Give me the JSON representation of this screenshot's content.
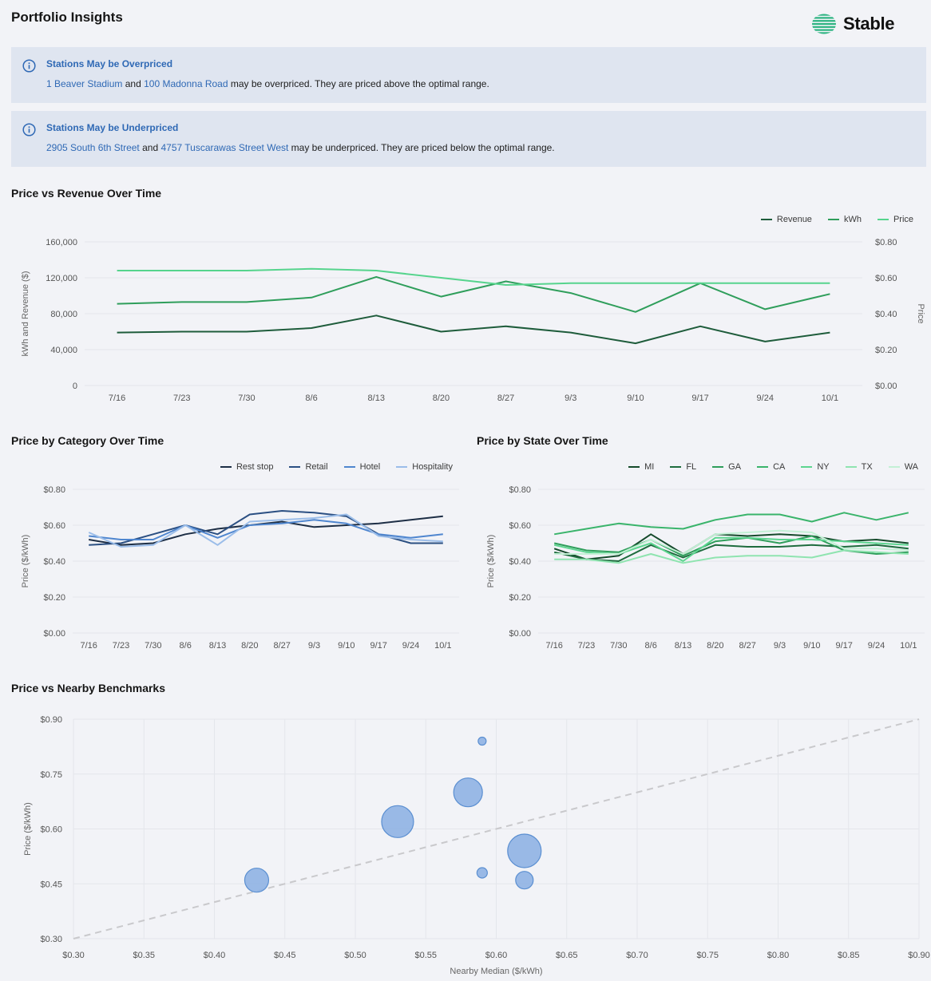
{
  "page": {
    "title": "Portfolio Insights",
    "logo_text": "Stable"
  },
  "alerts": [
    {
      "title": "Stations May be Overpriced",
      "link1": "1 Beaver Stadium",
      "joiner": " and ",
      "link2": "100 Madonna Road",
      "tail": " may be overpriced. They are priced above the optimal range."
    },
    {
      "title": "Stations May be Underpriced",
      "link1": "2905 South 6th Street",
      "joiner": " and ",
      "link2": "4757 Tuscarawas Street West",
      "tail": " may be underpriced. They are priced below the optimal range."
    }
  ],
  "colors": {
    "link": "#2f69b5",
    "alert_bg": "#dfe5f0",
    "gridline": "#e4e6eb",
    "bubble": "#8fb2e3",
    "bubble_stroke": "#5b8fd1"
  },
  "chart_data": [
    {
      "id": "price-vs-revenue",
      "type": "line",
      "title": "Price vs Revenue Over Time",
      "categories": [
        "7/16",
        "7/23",
        "7/30",
        "8/6",
        "8/13",
        "8/20",
        "8/27",
        "9/3",
        "9/10",
        "9/17",
        "9/24",
        "10/1"
      ],
      "ylabel": "kWh and Revenue ($)",
      "y2label": "Price",
      "ylim": [
        0,
        160000
      ],
      "y2lim": [
        0,
        0.8
      ],
      "yticks": [
        "0",
        "40,000",
        "80,000",
        "120,000",
        "160,000"
      ],
      "y2ticks": [
        "$0.00",
        "$0.20",
        "$0.40",
        "$0.60",
        "$0.80"
      ],
      "legend_position": "top-right",
      "series": [
        {
          "name": "Revenue",
          "axis": "left",
          "color": "#1e5c3b",
          "values": [
            59000,
            60000,
            60000,
            64000,
            78000,
            60000,
            66000,
            59000,
            47000,
            66000,
            49000,
            59000
          ]
        },
        {
          "name": "kWh",
          "axis": "left",
          "color": "#2f9e5b",
          "values": [
            91000,
            93000,
            93000,
            98000,
            121000,
            99000,
            116000,
            103000,
            82000,
            114000,
            85000,
            102000
          ]
        },
        {
          "name": "Price",
          "axis": "right",
          "color": "#56d48d",
          "values": [
            0.64,
            0.64,
            0.64,
            0.65,
            0.64,
            0.6,
            0.56,
            0.57,
            0.57,
            0.57,
            0.57,
            0.57
          ]
        }
      ]
    },
    {
      "id": "price-by-category",
      "type": "line",
      "title": "Price by Category Over Time",
      "categories": [
        "7/16",
        "7/23",
        "7/30",
        "8/6",
        "8/13",
        "8/20",
        "8/27",
        "9/3",
        "9/10",
        "9/17",
        "9/24",
        "10/1"
      ],
      "ylabel": "Price ($/kWh)",
      "ylim": [
        0,
        0.8
      ],
      "yticks": [
        "$0.00",
        "$0.20",
        "$0.40",
        "$0.60",
        "$0.80"
      ],
      "legend_position": "top-right",
      "series": [
        {
          "name": "Rest stop",
          "color": "#1d2e45",
          "values": [
            0.52,
            0.49,
            0.5,
            0.55,
            0.58,
            0.6,
            0.62,
            0.59,
            0.6,
            0.61,
            0.63,
            0.65
          ]
        },
        {
          "name": "Retail",
          "color": "#2b4f82",
          "values": [
            0.49,
            0.5,
            0.55,
            0.6,
            0.55,
            0.66,
            0.68,
            0.67,
            0.65,
            0.55,
            0.5,
            0.5
          ]
        },
        {
          "name": "Hotel",
          "color": "#4f86cf",
          "values": [
            0.54,
            0.52,
            0.52,
            0.6,
            0.53,
            0.6,
            0.61,
            0.63,
            0.61,
            0.55,
            0.53,
            0.55
          ]
        },
        {
          "name": "Hospitality",
          "color": "#9bbde9",
          "values": [
            0.56,
            0.48,
            0.49,
            0.6,
            0.49,
            0.62,
            0.63,
            0.64,
            0.66,
            0.54,
            0.52,
            0.51
          ]
        }
      ]
    },
    {
      "id": "price-by-state",
      "type": "line",
      "title": "Price by State Over Time",
      "categories": [
        "7/16",
        "7/23",
        "7/30",
        "8/6",
        "8/13",
        "8/20",
        "8/27",
        "9/3",
        "9/10",
        "9/17",
        "9/24",
        "10/1"
      ],
      "ylabel": "Price ($/kWh)",
      "ylim": [
        0,
        0.8
      ],
      "yticks": [
        "$0.00",
        "$0.20",
        "$0.40",
        "$0.60",
        "$0.80"
      ],
      "legend_position": "top-right",
      "series": [
        {
          "name": "MI",
          "color": "#154a2b",
          "values": [
            0.47,
            0.41,
            0.43,
            0.55,
            0.44,
            0.55,
            0.54,
            0.55,
            0.54,
            0.51,
            0.52,
            0.5
          ]
        },
        {
          "name": "FL",
          "color": "#1e6c3e",
          "values": [
            0.45,
            0.41,
            0.4,
            0.49,
            0.42,
            0.49,
            0.48,
            0.48,
            0.49,
            0.48,
            0.49,
            0.47
          ]
        },
        {
          "name": "GA",
          "color": "#2f9e5b",
          "values": [
            0.5,
            0.46,
            0.45,
            0.52,
            0.43,
            0.51,
            0.53,
            0.5,
            0.54,
            0.46,
            0.44,
            0.45
          ]
        },
        {
          "name": "CA",
          "color": "#3ab46b",
          "values": [
            0.55,
            0.58,
            0.61,
            0.59,
            0.58,
            0.63,
            0.66,
            0.66,
            0.62,
            0.67,
            0.63,
            0.67
          ]
        },
        {
          "name": "NY",
          "color": "#5cd58f",
          "values": [
            0.49,
            0.45,
            0.44,
            0.5,
            0.4,
            0.53,
            0.53,
            0.52,
            0.52,
            0.51,
            0.5,
            0.49
          ]
        },
        {
          "name": "TX",
          "color": "#8fe4b0",
          "values": [
            0.41,
            0.41,
            0.39,
            0.44,
            0.39,
            0.42,
            0.43,
            0.43,
            0.42,
            0.46,
            0.45,
            0.44
          ]
        },
        {
          "name": "WA",
          "color": "#c3f0d5",
          "values": [
            0.44,
            0.44,
            0.44,
            0.52,
            0.44,
            0.55,
            0.56,
            0.57,
            0.56,
            0.47,
            0.47,
            0.46
          ]
        }
      ]
    },
    {
      "id": "price-vs-benchmarks",
      "type": "scatter",
      "title": "Price vs Nearby Benchmarks",
      "xlabel": "Nearby Median ($/kWh)",
      "ylabel": "Price ($/kWh)",
      "xlim": [
        0.3,
        0.9
      ],
      "ylim": [
        0.3,
        0.9
      ],
      "xticks": [
        "$0.30",
        "$0.35",
        "$0.40",
        "$0.45",
        "$0.50",
        "$0.55",
        "$0.60",
        "$0.65",
        "$0.70",
        "$0.75",
        "$0.80",
        "$0.85",
        "$0.90"
      ],
      "yticks": [
        "$0.30",
        "$0.45",
        "$0.60",
        "$0.75",
        "$0.90"
      ],
      "reference_line": "y = x (dashed)",
      "points": [
        {
          "x": 0.43,
          "y": 0.46,
          "size": 3.0
        },
        {
          "x": 0.53,
          "y": 0.62,
          "size": 4.0
        },
        {
          "x": 0.58,
          "y": 0.7,
          "size": 3.6
        },
        {
          "x": 0.59,
          "y": 0.84,
          "size": 1.0
        },
        {
          "x": 0.59,
          "y": 0.48,
          "size": 1.3
        },
        {
          "x": 0.62,
          "y": 0.54,
          "size": 4.2
        },
        {
          "x": 0.62,
          "y": 0.46,
          "size": 2.2
        }
      ]
    }
  ]
}
